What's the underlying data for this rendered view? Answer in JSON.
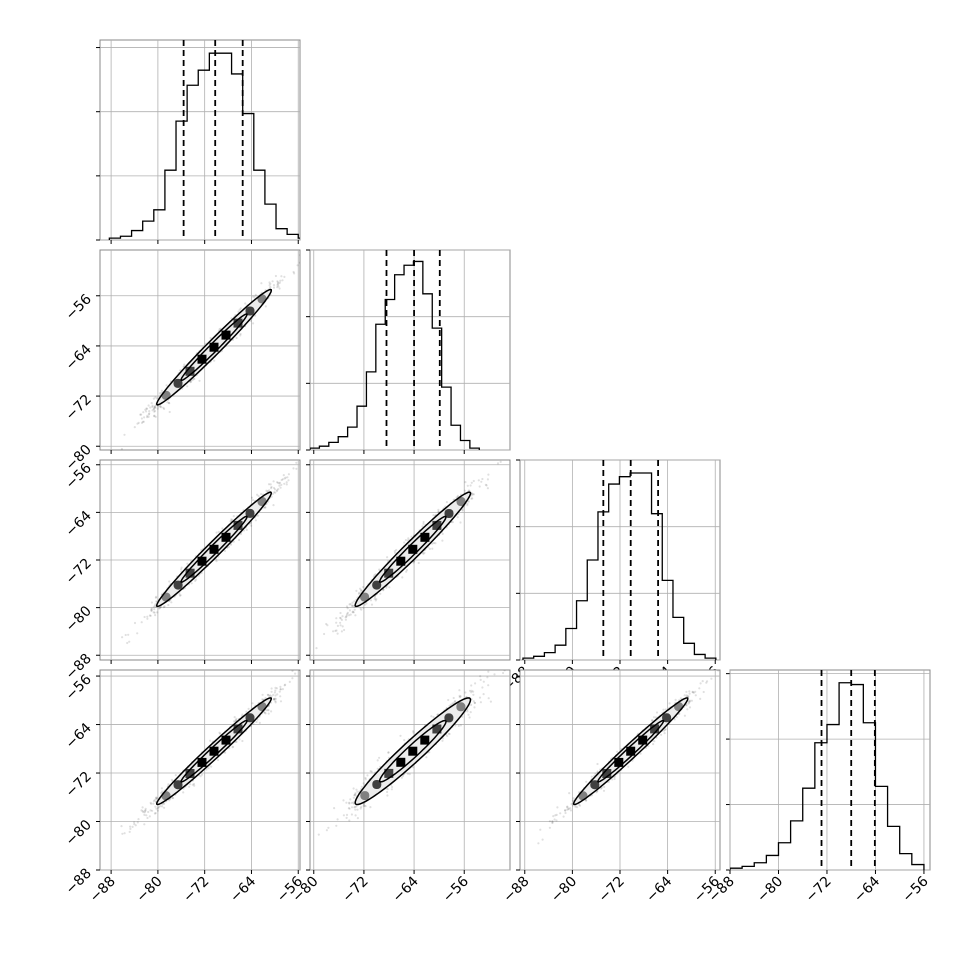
{
  "chart_data": {
    "type": "corner",
    "grid": true,
    "histograms": [
      {
        "bin_edges": [
          -88.3,
          -86.4,
          -84.5,
          -82.6,
          -80.7,
          -78.8,
          -76.9,
          -75.0,
          -73.1,
          -71.2,
          -69.3,
          -67.4,
          -65.5,
          -63.6,
          -61.7,
          -59.8,
          -57.9,
          -56.0,
          -54.1
        ],
        "counts": [
          1,
          2,
          5,
          10,
          16,
          37,
          63,
          82,
          90,
          99,
          99,
          88,
          67,
          37,
          19,
          6,
          3,
          1
        ],
        "quantiles": [
          -75.6,
          -70.2,
          -65.5
        ],
        "xlim": [
          -89.9,
          -55.7
        ],
        "ymax": 106,
        "yticks": [
          0,
          34,
          68,
          102
        ],
        "xticks": [
          -88,
          -80,
          -72,
          -64,
          -56
        ],
        "xticks_printed": false
      },
      {
        "bin_edges": [
          -80.6,
          -79.1,
          -77.6,
          -76.1,
          -74.6,
          -73.1,
          -71.6,
          -70.1,
          -68.6,
          -67.1,
          -65.6,
          -64.1,
          -62.6,
          -61.1,
          -59.6,
          -58.1,
          -56.6,
          -55.1,
          -53.6
        ],
        "counts": [
          1,
          2,
          4,
          7,
          12,
          23,
          41,
          66,
          79,
          92,
          97,
          99,
          82,
          64,
          33,
          13,
          5,
          1
        ],
        "quantiles": [
          -68.4,
          -64.0,
          -59.9
        ],
        "xlim": [
          -80.6,
          -48.7
        ],
        "ymax": 105,
        "yticks": [
          0,
          35,
          70,
          105
        ],
        "xticks": [
          -80,
          -72,
          -64,
          -56
        ],
        "xticks_printed": false
      },
      {
        "bin_edges": [
          -88.3,
          -86.5,
          -84.7,
          -82.9,
          -81.1,
          -79.3,
          -77.5,
          -75.7,
          -73.9,
          -72.1,
          -70.3,
          -68.5,
          -66.7,
          -64.9,
          -63.1,
          -61.3,
          -59.5,
          -57.7,
          -55.9
        ],
        "counts": [
          1,
          2,
          4,
          8,
          17,
          32,
          54,
          80,
          95,
          99,
          101,
          101,
          79,
          43,
          23,
          9,
          3,
          1
        ],
        "quantiles": [
          -74.8,
          -70.2,
          -65.6
        ],
        "xlim": [
          -88.8,
          -55.2
        ],
        "ymax": 108,
        "yticks": [
          0,
          36,
          72,
          108
        ],
        "xticks": [
          -88,
          -80,
          -72,
          -64,
          -56
        ],
        "xticks_printed": true
      },
      {
        "bin_edges": [
          -88.0,
          -86.0,
          -84.0,
          -82.0,
          -80.0,
          -78.0,
          -76.0,
          -74.0,
          -72.0,
          -70.0,
          -68.0,
          -66.0,
          -64.0,
          -62.0,
          -60.0,
          -58.0,
          -56.0
        ],
        "counts": [
          1,
          2,
          4,
          8,
          15,
          27,
          45,
          70,
          80,
          103,
          102,
          81,
          46,
          24,
          9,
          3
        ],
        "quantiles": [
          -72.9,
          -68.0,
          -64.1
        ],
        "xlim": [
          -88.0,
          -55.0
        ],
        "ymax": 110,
        "yticks": [
          0,
          36,
          72,
          108
        ],
        "xticks": [
          -88,
          -80,
          -72,
          -64,
          -56
        ],
        "xticks_printed": true
      }
    ],
    "scatter_panels": [
      {
        "row": 1,
        "col": 0,
        "xlim": [
          -89.9,
          -55.7
        ],
        "ylim": [
          -80.6,
          -48.7
        ],
        "xticks": [
          -88,
          -80,
          -72,
          -64,
          -56
        ],
        "yticks": [
          -80,
          -72,
          -64,
          -56
        ],
        "xticks_printed": false,
        "yticks_printed": true,
        "mean": [
          -70.4,
          -64.2
        ],
        "sd": [
          4.9,
          4.6
        ],
        "rho": 0.985
      },
      {
        "row": 2,
        "col": 0,
        "xlim": [
          -89.9,
          -55.7
        ],
        "ylim": [
          -88.8,
          -55.2
        ],
        "xticks": [
          -88,
          -80,
          -72,
          -64,
          -56
        ],
        "yticks": [
          -88,
          -80,
          -72,
          -64,
          -56
        ],
        "xticks_printed": false,
        "yticks_printed": true,
        "mean": [
          -70.4,
          -70.2
        ],
        "sd": [
          4.9,
          4.8
        ],
        "rho": 0.985
      },
      {
        "row": 2,
        "col": 1,
        "xlim": [
          -80.6,
          -48.7
        ],
        "ylim": [
          -88.8,
          -55.2
        ],
        "xticks": [
          -80,
          -72,
          -64,
          -56
        ],
        "yticks": [
          -88,
          -80,
          -72,
          -64,
          -56
        ],
        "xticks_printed": false,
        "yticks_printed": false,
        "mean": [
          -64.2,
          -70.2
        ],
        "sd": [
          4.6,
          4.8
        ],
        "rho": 0.98
      },
      {
        "row": 3,
        "col": 0,
        "xlim": [
          -89.9,
          -55.7
        ],
        "ylim": [
          -88.0,
          -55.0
        ],
        "xticks": [
          -88,
          -80,
          -72,
          -64,
          -56
        ],
        "yticks": [
          -88,
          -80,
          -72,
          -64,
          -56
        ],
        "xticks_printed": true,
        "yticks_printed": true,
        "mean": [
          -70.4,
          -68.4
        ],
        "sd": [
          4.9,
          4.4
        ],
        "rho": 0.985
      },
      {
        "row": 3,
        "col": 1,
        "xlim": [
          -80.6,
          -48.7
        ],
        "ylim": [
          -88.0,
          -55.0
        ],
        "xticks": [
          -80,
          -72,
          -64,
          -56
        ],
        "yticks": [
          -88,
          -80,
          -72,
          -64,
          -56
        ],
        "xticks_printed": true,
        "yticks_printed": false,
        "mean": [
          -64.2,
          -68.4
        ],
        "sd": [
          4.6,
          4.4
        ],
        "rho": 0.965
      },
      {
        "row": 3,
        "col": 2,
        "xlim": [
          -88.8,
          -55.2
        ],
        "ylim": [
          -88.0,
          -55.0
        ],
        "xticks": [
          -88,
          -80,
          -72,
          -64,
          -56
        ],
        "yticks": [
          -88,
          -80,
          -72,
          -64,
          -56
        ],
        "xticks_printed": true,
        "yticks_printed": false,
        "mean": [
          -70.2,
          -68.4
        ],
        "sd": [
          4.8,
          4.4
        ],
        "rho": 0.985
      }
    ],
    "colors": {
      "frame": "#888888",
      "grid": "#b0b0b0",
      "line": "#000000",
      "contour_fill": "#ececec",
      "cells": [
        "#808080",
        "#404040",
        "#000000"
      ]
    }
  }
}
